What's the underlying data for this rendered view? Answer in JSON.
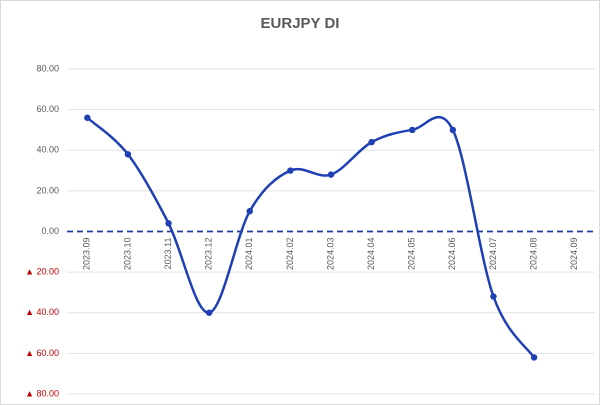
{
  "chart_data": {
    "type": "line",
    "title": "EURJPY DI",
    "categories": [
      "2023.09",
      "2023.10",
      "2023.11",
      "2023.12",
      "2024.01",
      "2024.02",
      "2024.03",
      "2024.04",
      "2024.05",
      "2024.06",
      "2024.07",
      "2024.08",
      "2024.09"
    ],
    "series": [
      {
        "name": "EURJPY DI",
        "color": "#1f3fb4",
        "values": [
          56,
          38,
          4,
          -40,
          10,
          30,
          28,
          44,
          50,
          50,
          -32,
          -62,
          null
        ]
      }
    ],
    "ylim": [
      -80,
      80
    ],
    "yticks": [
      {
        "value": -80,
        "label": "▲ 80.00"
      },
      {
        "value": -60,
        "label": "▲ 60.00"
      },
      {
        "value": -40,
        "label": "▲ 40.00"
      },
      {
        "value": -20,
        "label": "▲ 20.00"
      },
      {
        "value": 0,
        "label": "0.00"
      },
      {
        "value": 20,
        "label": "20.00"
      },
      {
        "value": 40,
        "label": "40.00"
      },
      {
        "value": 60,
        "label": "60.00"
      },
      {
        "value": 80,
        "label": "80.00"
      }
    ],
    "negative_label_color": "#c00000",
    "grid": true,
    "smooth": true
  }
}
